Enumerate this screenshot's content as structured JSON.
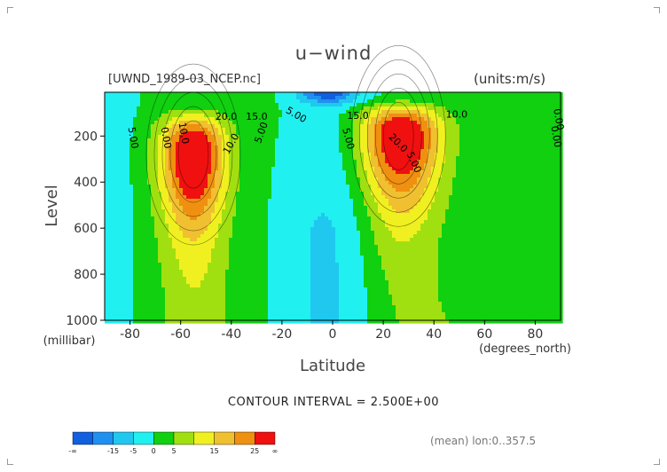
{
  "title": "u−wind",
  "file_label": "[UWND_1989-03_NCEP.nc]",
  "units_label": "(units:m/s)",
  "contour_interval": "CONTOUR INTERVAL = 2.500E+00",
  "mean_label": "(mean) lon:0..357.5",
  "chart_data": {
    "type": "contour",
    "title": "u−wind",
    "xlabel": "Latitude",
    "xunit": "(degrees_north)",
    "ylabel": "Level",
    "yunit": "(millibar)",
    "xlim": [
      -90,
      90
    ],
    "ylim": [
      1000,
      10
    ],
    "x_ticks": [
      -80,
      -60,
      -40,
      -20,
      0,
      20,
      40,
      60,
      80
    ],
    "y_ticks": [
      200,
      400,
      600,
      800,
      1000
    ],
    "contour_labels": [
      "20.0",
      "15.0",
      "10.0",
      "5.00",
      "0.00",
      "5.00",
      "10.0",
      "5.00",
      "0.00",
      "15.0",
      "10.0",
      "5.00",
      "20.0",
      "0.00",
      "5.00"
    ],
    "jets": [
      {
        "lat": -55,
        "level": 280,
        "max_speed": 30
      },
      {
        "lat": 26,
        "level": 200,
        "max_speed": 30
      }
    ],
    "colorbar": {
      "labels": [
        "-∞",
        "-15",
        "-5",
        "0",
        "5",
        "15",
        "25",
        "∞"
      ],
      "colors": [
        "#1060e0",
        "#2090f0",
        "#20c8f0",
        "#20f0f0",
        "#10d010",
        "#a0e010",
        "#f0f020",
        "#f0c030",
        "#f09010",
        "#f01010"
      ]
    }
  }
}
